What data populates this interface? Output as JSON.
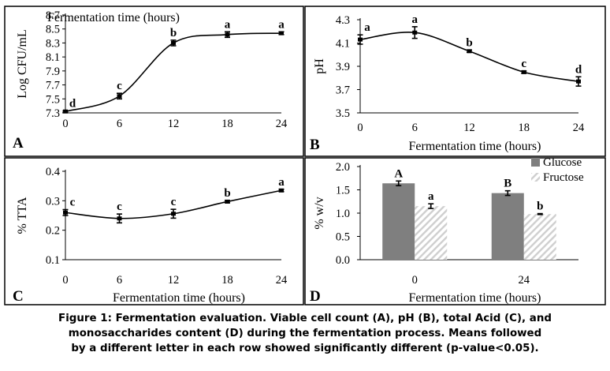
{
  "caption": [
    "Figure 1: Fermentation evaluation. Viable cell count (A), pH (B), total Acid (C), and",
    "monosaccharides content (D) during the fermentation process. Means followed",
    "by a different letter in each row showed significantly different (p-value<0.05)."
  ],
  "chart_data": [
    {
      "panel": "A",
      "type": "line",
      "xlabel": "Fermentation time (hours)",
      "ylabel": "Log CFU/mL",
      "x": [
        0,
        6,
        12,
        18,
        24
      ],
      "y": [
        7.32,
        7.54,
        8.3,
        8.42,
        8.44
      ],
      "err": [
        0.01,
        0.04,
        0.04,
        0.04,
        0.02
      ],
      "letters": [
        "d",
        "c",
        "b",
        "a",
        "a"
      ],
      "xticks": [
        0,
        6,
        12,
        18,
        24
      ],
      "yticks": [
        "7.3",
        "7.5",
        "7.7",
        "7.9",
        "8.1",
        "8.3",
        "8.5",
        "8.7"
      ],
      "xlim": [
        0,
        24
      ],
      "ylim": [
        7.3,
        8.7
      ]
    },
    {
      "panel": "B",
      "type": "line",
      "xlabel": "Fermentation time (hours)",
      "ylabel": "pH",
      "x": [
        0,
        6,
        12,
        18,
        24
      ],
      "y": [
        4.13,
        4.19,
        4.03,
        3.85,
        3.77
      ],
      "err": [
        0.04,
        0.05,
        0.01,
        0.01,
        0.04
      ],
      "letters": [
        "a",
        "a",
        "b",
        "c",
        "d"
      ],
      "xticks": [
        0,
        6,
        12,
        18,
        24
      ],
      "yticks": [
        "3.5",
        "3.7",
        "3.9",
        "4.1",
        "4.3"
      ],
      "xlim": [
        0,
        24
      ],
      "ylim": [
        3.5,
        4.3
      ]
    },
    {
      "panel": "C",
      "type": "line",
      "xlabel": "Fermentation time (hours)",
      "ylabel": "% TTA",
      "x": [
        0,
        6,
        12,
        18,
        24
      ],
      "y": [
        0.26,
        0.24,
        0.256,
        0.297,
        0.335
      ],
      "err": [
        0.01,
        0.015,
        0.015,
        0.004,
        0.004
      ],
      "letters": [
        "c",
        "c",
        "c",
        "b",
        "a"
      ],
      "xticks": [
        0,
        6,
        12,
        18,
        24
      ],
      "yticks": [
        "0.1",
        "0.2",
        "0.3",
        "0.4"
      ],
      "xlim": [
        0,
        24
      ],
      "ylim": [
        0.1,
        0.4
      ]
    },
    {
      "panel": "D",
      "type": "bar",
      "xlabel": "Fermentation time (hours)",
      "ylabel": "% w/v",
      "categories": [
        "0",
        "24"
      ],
      "series": [
        {
          "name": "Glucose",
          "values": [
            1.64,
            1.43
          ],
          "err": [
            0.05,
            0.05
          ],
          "letters": [
            "A",
            "B"
          ],
          "color": "#7f7f7f"
        },
        {
          "name": "Fructose",
          "values": [
            1.15,
            0.98
          ],
          "err": [
            0.05,
            0.01
          ],
          "letters": [
            "a",
            "b"
          ],
          "color": "#d9d9d9"
        }
      ],
      "yticks": [
        "0.0",
        "0.5",
        "1.0",
        "1.5",
        "2.0"
      ],
      "ylim": [
        0,
        2.0
      ],
      "legend": "top-right"
    }
  ]
}
